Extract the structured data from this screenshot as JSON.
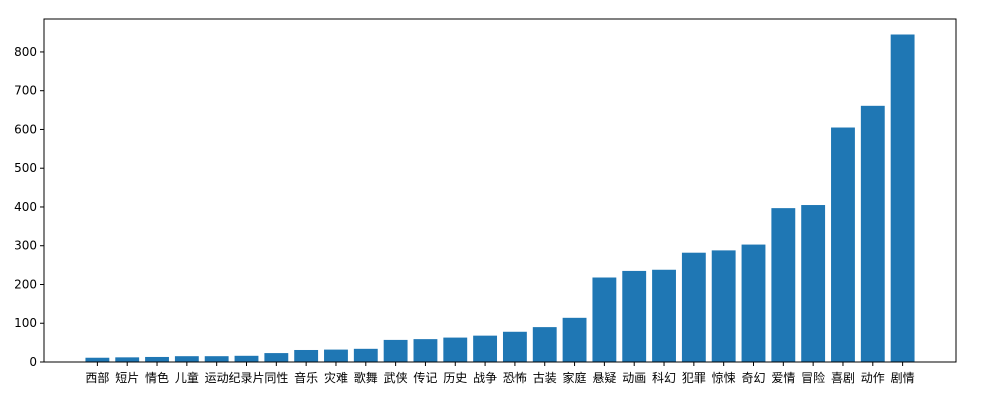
{
  "chart_data": {
    "type": "bar",
    "title": "",
    "xlabel": "",
    "ylabel": "",
    "ylim": [
      0,
      885
    ],
    "yticks": [
      0,
      100,
      200,
      300,
      400,
      500,
      600,
      700,
      800
    ],
    "grid": false,
    "bar_color": "#1f77b4",
    "categories": [
      "西部",
      "短片",
      "情色",
      "儿童",
      "运动",
      "纪录片",
      "同性",
      "音乐",
      "灾难",
      "歌舞",
      "武侠",
      "传记",
      "历史",
      "战争",
      "恐怖",
      "古装",
      "家庭",
      "悬疑",
      "动画",
      "科幻",
      "犯罪",
      "惊悚",
      "奇幻",
      "爱情",
      "冒险",
      "喜剧",
      "动作",
      "剧情"
    ],
    "values": [
      11,
      12,
      13,
      15,
      15,
      16,
      23,
      31,
      32,
      34,
      57,
      59,
      63,
      68,
      78,
      90,
      114,
      218,
      235,
      238,
      282,
      288,
      303,
      397,
      405,
      605,
      661,
      845
    ]
  }
}
